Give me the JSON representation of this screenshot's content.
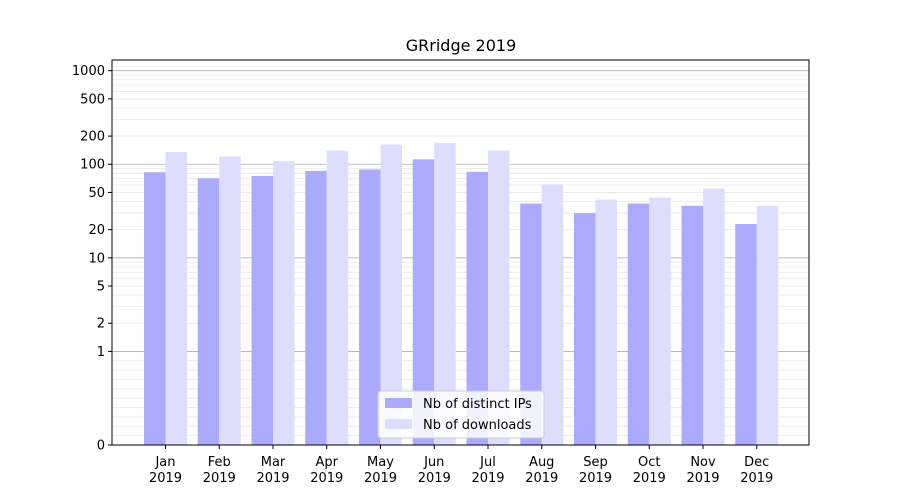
{
  "chart_data": {
    "type": "bar",
    "title": "GRridge 2019",
    "xlabel": "",
    "ylabel": "",
    "yscale": "symlog",
    "ylim": [
      0,
      1300
    ],
    "yticks": [
      0,
      1,
      2,
      5,
      10,
      20,
      50,
      100,
      200,
      500,
      1000
    ],
    "ytick_labels": [
      "0",
      "1",
      "2",
      "5",
      "10",
      "20",
      "50",
      "100",
      "200",
      "500",
      "1000"
    ],
    "categories": [
      "Jan\n2019",
      "Feb\n2019",
      "Mar\n2019",
      "Apr\n2019",
      "May\n2019",
      "Jun\n2019",
      "Jul\n2019",
      "Aug\n2019",
      "Sep\n2019",
      "Oct\n2019",
      "Nov\n2019",
      "Dec\n2019"
    ],
    "category_lines": [
      [
        "Jan",
        "2019"
      ],
      [
        "Feb",
        "2019"
      ],
      [
        "Mar",
        "2019"
      ],
      [
        "Apr",
        "2019"
      ],
      [
        "May",
        "2019"
      ],
      [
        "Jun",
        "2019"
      ],
      [
        "Jul",
        "2019"
      ],
      [
        "Aug",
        "2019"
      ],
      [
        "Sep",
        "2019"
      ],
      [
        "Oct",
        "2019"
      ],
      [
        "Nov",
        "2019"
      ],
      [
        "Dec",
        "2019"
      ]
    ],
    "series": [
      {
        "name": "Nb of distinct IPs",
        "color": "#aaaaff",
        "values": [
          82,
          71,
          75,
          85,
          88,
          113,
          83,
          38,
          30,
          38,
          36,
          23
        ]
      },
      {
        "name": "Nb of downloads",
        "color": "#ddddff",
        "values": [
          135,
          121,
          108,
          140,
          162,
          168,
          140,
          61,
          42,
          44,
          55,
          36
        ]
      }
    ],
    "grid": true,
    "legend_position": "lower-center"
  }
}
